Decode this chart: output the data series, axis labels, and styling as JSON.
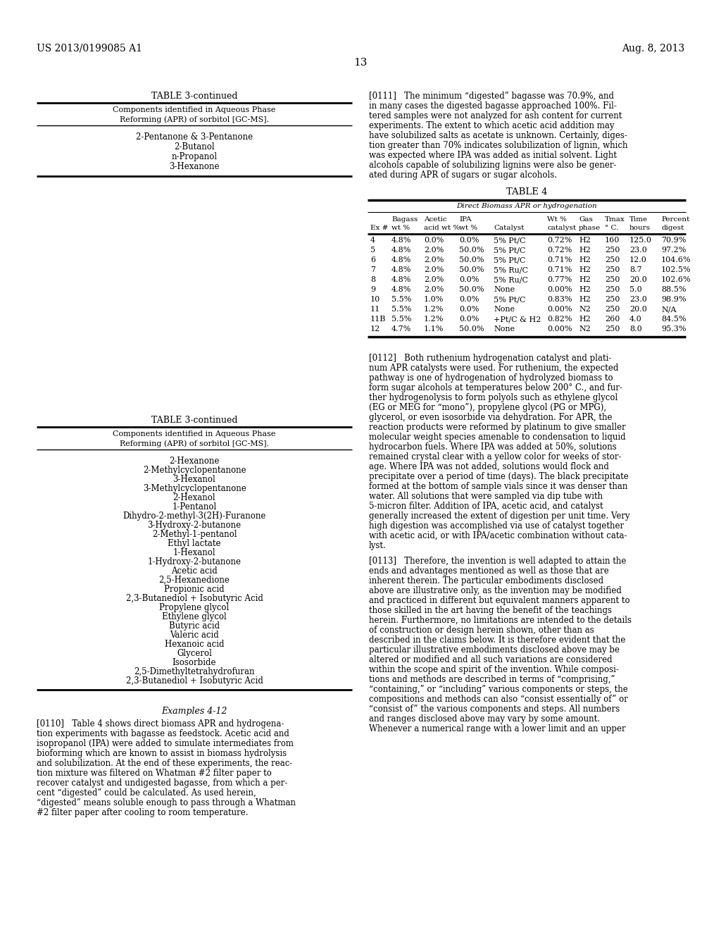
{
  "background_color": "#ffffff",
  "page_number": "13",
  "header_left": "US 2013/0199085 A1",
  "header_right": "Aug. 8, 2013",
  "table3_cont_top_title": "TABLE 3-continued",
  "table3_cont_top_subtitle1": "Components identified in Aqueous Phase",
  "table3_cont_top_subtitle2": "Reforming (APR) of sorbitol [GC-MS].",
  "table3_cont_top_items": [
    "2-Pentanone & 3-Pentanone",
    "2-Butanol",
    "n-Propanol",
    "3-Hexanone"
  ],
  "table4_title": "TABLE 4",
  "table4_subtitle": "Direct Biomass APR or hydrogenation",
  "table3_cont_bot_title": "TABLE 3-continued",
  "table3_cont_bot_subtitle1": "Components identified in Aqueous Phase",
  "table3_cont_bot_subtitle2": "Reforming (APR) of sorbitol [GC-MS].",
  "table3_cont_bot_items": [
    "2-Hexanone",
    "2-Methylcyclopentanone",
    "3-Hexanol",
    "3-Methylcyclopentanone",
    "2-Hexanol",
    "1-Pentanol",
    "Dihydro-2-methyl-3(2H)-Furanone",
    "3-Hydroxy-2-butanone",
    "2-Methyl-1-pentanol",
    "Ethyl lactate",
    "1-Hexanol",
    "1-Hydroxy-2-butanone",
    "Acetic acid",
    "2,5-Hexanedione",
    "Propionic acid",
    "2,3-Butanediol + Isobutyric Acid",
    "Propylene glycol",
    "Ethylene glycol",
    "Butyric acid",
    "Valeric acid",
    "Hexanoic acid",
    "Glycerol",
    "Isosorbide",
    "2,5-Dimethyltetrahydrofuran",
    "2,3-Butanediol + Isobutyric Acid"
  ],
  "examples_label": "Examples 4-12",
  "lines_0111": [
    "[0111]   The minimum “digested” bagasse was 70.9%, and",
    "in many cases the digested bagasse approached 100%. Fil-",
    "tered samples were not analyzed for ash content for current",
    "experiments. The extent to which acetic acid addition may",
    "have solubilized salts as acetate is unknown. Certainly, diges-",
    "tion greater than 70% indicates solubilization of lignin, which",
    "was expected where IPA was added as initial solvent. Light",
    "alcohols capable of solubilizing lignins were also be gener-",
    "ated during APR of sugars or sugar alcohols."
  ],
  "table4_col_headers_row1": [
    "",
    "Bagass",
    "Acetic",
    "IPA",
    "",
    "Wt %",
    "Gas",
    "Tmax",
    "Time",
    "Percent"
  ],
  "table4_col_headers_row2": [
    "Ex #",
    "wt %",
    "acid wt %",
    "wt %",
    "Catalyst",
    "catalyst",
    "phase",
    "° C.",
    "hours",
    "digest"
  ],
  "table4_data": [
    [
      "4",
      "4.8%",
      "0.0%",
      "0.0%",
      "5% Pt/C",
      "0.72%",
      "H2",
      "160",
      "125.0",
      "70.9%"
    ],
    [
      "5",
      "4.8%",
      "2.0%",
      "50.0%",
      "5% Pt/C",
      "0.72%",
      "H2",
      "250",
      "23.0",
      "97.2%"
    ],
    [
      "6",
      "4.8%",
      "2.0%",
      "50.0%",
      "5% Pt/C",
      "0.71%",
      "H2",
      "250",
      "12.0",
      "104.6%"
    ],
    [
      "7",
      "4.8%",
      "2.0%",
      "50.0%",
      "5% Ru/C",
      "0.71%",
      "H2",
      "250",
      "8.7",
      "102.5%"
    ],
    [
      "8",
      "4.8%",
      "2.0%",
      "0.0%",
      "5% Ru/C",
      "0.77%",
      "H2",
      "250",
      "20.0",
      "102.6%"
    ],
    [
      "9",
      "4.8%",
      "2.0%",
      "50.0%",
      "None",
      "0.00%",
      "H2",
      "250",
      "5.0",
      "88.5%"
    ],
    [
      "10",
      "5.5%",
      "1.0%",
      "0.0%",
      "5% Pt/C",
      "0.83%",
      "H2",
      "250",
      "23.0",
      "98.9%"
    ],
    [
      "11",
      "5.5%",
      "1.2%",
      "0.0%",
      "None",
      "0.00%",
      "N2",
      "250",
      "20.0",
      "N/A"
    ],
    [
      "11B",
      "5.5%",
      "1.2%",
      "0.0%",
      "+Pt/C & H2",
      "0.82%",
      "H2",
      "260",
      "4.0",
      "84.5%"
    ],
    [
      "12",
      "4.7%",
      "1.1%",
      "50.0%",
      "None",
      "0.00%",
      "N2",
      "250",
      "8.0",
      "95.3%"
    ]
  ],
  "lines_0110": [
    "[0110]   Table 4 shows direct biomass APR and hydrogena-",
    "tion experiments with bagasse as feedstock. Acetic acid and",
    "isopropanol (IPA) were added to simulate intermediates from",
    "bioforming which are known to assist in biomass hydrolysis",
    "and solubilization. At the end of these experiments, the reac-",
    "tion mixture was filtered on Whatman #2 filter paper to",
    "recover catalyst and undigested bagasse, from which a per-",
    "cent “digested” could be calculated. As used herein,",
    "“digested” means soluble enough to pass through a Whatman",
    "#2 filter paper after cooling to room temperature."
  ],
  "lines_0112": [
    "[0112]   Both ruthenium hydrogenation catalyst and plati-",
    "num APR catalysts were used. For ruthenium, the expected",
    "pathway is one of hydrogenation of hydrolyzed biomass to",
    "form sugar alcohols at temperatures below 200° C., and fur-",
    "ther hydrogenolysis to form polyols such as ethylene glycol",
    "(EG or MEG for “mono”), propylene glycol (PG or MPG),",
    "glycerol, or even isosorbide via dehydration. For APR, the",
    "reaction products were reformed by platinum to give smaller",
    "molecular weight species amenable to condensation to liquid",
    "hydrocarbon fuels. Where IPA was added at 50%, solutions",
    "remained crystal clear with a yellow color for weeks of stor-",
    "age. Where IPA was not added, solutions would flock and",
    "precipitate over a period of time (days). The black precipitate",
    "formed at the bottom of sample vials since it was denser than",
    "water. All solutions that were sampled via dip tube with",
    "5-micron filter. Addition of IPA, acetic acid, and catalyst",
    "generally increased the extent of digestion per unit time. Very",
    "high digestion was accomplished via use of catalyst together",
    "with acetic acid, or with IPA/acetic combination without cata-",
    "lyst."
  ],
  "lines_0113": [
    "[0113]   Therefore, the invention is well adapted to attain the",
    "ends and advantages mentioned as well as those that are",
    "inherent therein. The particular embodiments disclosed",
    "above are illustrative only, as the invention may be modified",
    "and practiced in different but equivalent manners apparent to",
    "those skilled in the art having the benefit of the teachings",
    "herein. Furthermore, no limitations are intended to the details",
    "of construction or design herein shown, other than as",
    "described in the claims below. It is therefore evident that the",
    "particular illustrative embodiments disclosed above may be",
    "altered or modified and all such variations are considered",
    "within the scope and spirit of the invention. While composi-",
    "tions and methods are described in terms of “comprising,”",
    "“containing,” or “including” various components or steps, the",
    "compositions and methods can also “consist essentially of” or",
    "“consist of” the various components and steps. All numbers",
    "and ranges disclosed above may vary by some amount.",
    "Whenever a numerical range with a lower limit and an upper"
  ]
}
